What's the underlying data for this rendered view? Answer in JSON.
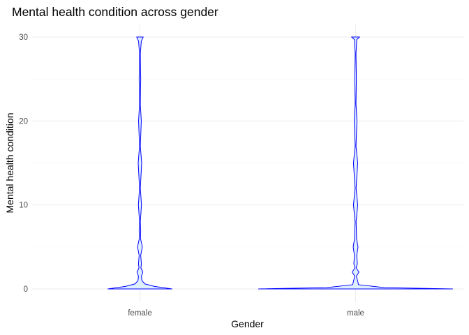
{
  "chart_data": {
    "type": "violin",
    "title": "Mental health condition across gender",
    "xlabel": "Gender",
    "ylabel": "Mental health condition",
    "categories": [
      "female",
      "male"
    ],
    "ylim": [
      -1.5,
      31.5
    ],
    "yticks": [
      0,
      10,
      20,
      30
    ],
    "grid": true,
    "legend": "none",
    "fill_color": "#ddeeff",
    "line_color": "#0000ff",
    "series": [
      {
        "category": "female",
        "density": [
          {
            "y": 0,
            "w": 0.33
          },
          {
            "y": 0.3,
            "w": 0.15
          },
          {
            "y": 0.6,
            "w": 0.05
          },
          {
            "y": 1.0,
            "w": 0.02
          },
          {
            "y": 1.5,
            "w": 0.015
          },
          {
            "y": 2.0,
            "w": 0.03
          },
          {
            "y": 2.5,
            "w": 0.01
          },
          {
            "y": 3.0,
            "w": 0.015
          },
          {
            "y": 4.0,
            "w": 0.008
          },
          {
            "y": 5.0,
            "w": 0.025
          },
          {
            "y": 6.0,
            "w": 0.006
          },
          {
            "y": 7.0,
            "w": 0.008
          },
          {
            "y": 8.0,
            "w": 0.004
          },
          {
            "y": 10.0,
            "w": 0.016
          },
          {
            "y": 12.0,
            "w": 0.004
          },
          {
            "y": 15.0,
            "w": 0.018
          },
          {
            "y": 17.0,
            "w": 0.004
          },
          {
            "y": 20.0,
            "w": 0.014
          },
          {
            "y": 22.0,
            "w": 0.003
          },
          {
            "y": 25.0,
            "w": 0.008
          },
          {
            "y": 28.0,
            "w": 0.004
          },
          {
            "y": 29.5,
            "w": 0.014
          },
          {
            "y": 30.0,
            "w": 0.034
          }
        ]
      },
      {
        "category": "male",
        "density": [
          {
            "y": 0,
            "w": 1.0
          },
          {
            "y": 0.15,
            "w": 0.3
          },
          {
            "y": 0.5,
            "w": 0.03
          },
          {
            "y": 1.0,
            "w": 0.02
          },
          {
            "y": 1.5,
            "w": 0.008
          },
          {
            "y": 2.0,
            "w": 0.035
          },
          {
            "y": 2.5,
            "w": 0.006
          },
          {
            "y": 3.0,
            "w": 0.018
          },
          {
            "y": 4.0,
            "w": 0.012
          },
          {
            "y": 5.0,
            "w": 0.025
          },
          {
            "y": 6.0,
            "w": 0.01
          },
          {
            "y": 7.0,
            "w": 0.008
          },
          {
            "y": 8.0,
            "w": 0.005
          },
          {
            "y": 10.0,
            "w": 0.022
          },
          {
            "y": 12.0,
            "w": 0.005
          },
          {
            "y": 15.0,
            "w": 0.022
          },
          {
            "y": 17.0,
            "w": 0.004
          },
          {
            "y": 20.0,
            "w": 0.014
          },
          {
            "y": 22.0,
            "w": 0.004
          },
          {
            "y": 25.0,
            "w": 0.008
          },
          {
            "y": 28.0,
            "w": 0.004
          },
          {
            "y": 29.7,
            "w": 0.012
          },
          {
            "y": 30.0,
            "w": 0.042
          }
        ]
      }
    ]
  }
}
